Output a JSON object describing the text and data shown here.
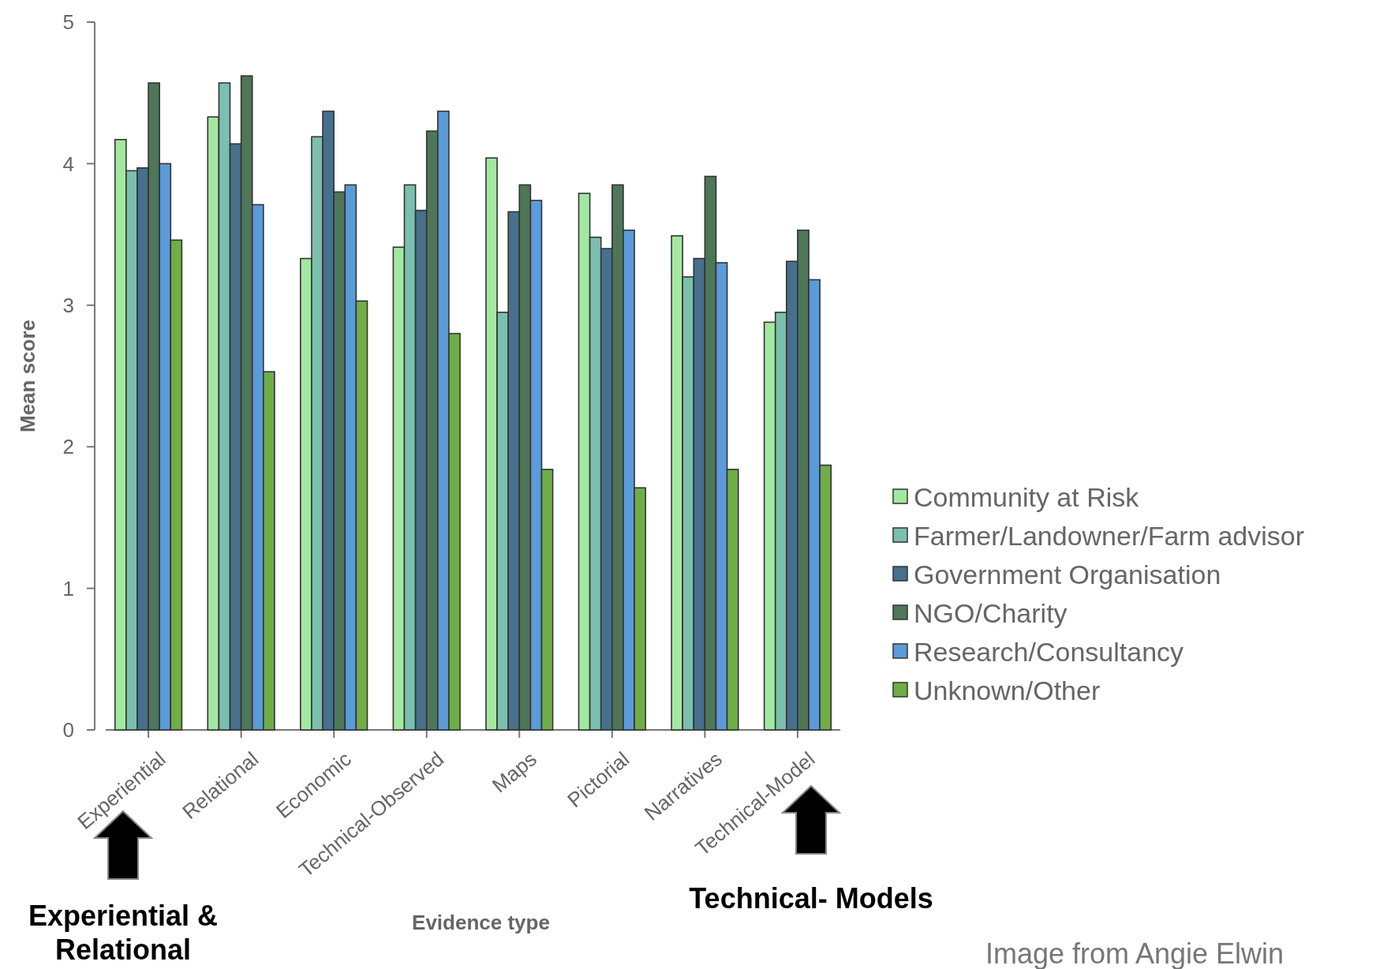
{
  "chart_data": {
    "type": "bar",
    "xlabel": "Evidence type",
    "ylabel": "Mean score",
    "categories": [
      "Experiential",
      "Relational",
      "Economic",
      "Technical-Observed",
      "Maps",
      "Pictorial",
      "Narratives",
      "Technical-Model"
    ],
    "series": [
      {
        "name": "Community at Risk",
        "color": "#a3e8a0",
        "values": [
          4.17,
          4.33,
          3.33,
          3.41,
          4.04,
          3.79,
          3.49,
          2.88
        ]
      },
      {
        "name": "Farmer/Landowner/Farm advisor",
        "color": "#7bbfae",
        "values": [
          3.95,
          4.57,
          4.19,
          3.85,
          2.95,
          3.48,
          3.2,
          2.95
        ]
      },
      {
        "name": "Government Organisation",
        "color": "#46708c",
        "values": [
          3.97,
          4.14,
          4.37,
          3.67,
          3.66,
          3.4,
          3.33,
          3.31
        ]
      },
      {
        "name": "NGO/Charity",
        "color": "#4e7658",
        "values": [
          4.57,
          4.62,
          3.8,
          4.23,
          3.85,
          3.85,
          3.91,
          3.53
        ]
      },
      {
        "name": "Research/Consultancy",
        "color": "#5b9bd9",
        "values": [
          4.0,
          3.71,
          3.85,
          4.37,
          3.74,
          3.53,
          3.3,
          3.18
        ]
      },
      {
        "name": "Unknown/Other",
        "color": "#6fae47",
        "values": [
          3.46,
          2.53,
          3.03,
          2.8,
          1.84,
          1.71,
          1.84,
          1.87
        ]
      }
    ],
    "ylim": [
      0,
      5
    ],
    "yticks": [
      0,
      1,
      2,
      3,
      4,
      5
    ],
    "grid": false,
    "legend": "right",
    "annotations": [
      "Experiential & Relational",
      "Technical- Models",
      "Image from Angie Elwin"
    ]
  }
}
